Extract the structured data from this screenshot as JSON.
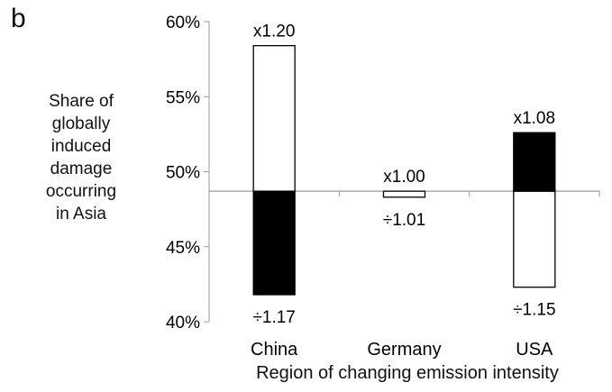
{
  "chart_data": {
    "type": "bar",
    "panel_label": "b",
    "ylabel": "Share of globally induced damage occurring in Asia",
    "ylabel_lines": [
      "Share of",
      "globally",
      "induced",
      "damage",
      "occurring",
      "in Asia"
    ],
    "xlabel": "Region of changing emission intensity",
    "ylim": [
      40,
      60
    ],
    "yticks": [
      40,
      45,
      50,
      55,
      60
    ],
    "ytick_labels": [
      "40%",
      "45%",
      "50%",
      "55%",
      "60%"
    ],
    "baseline": 48.7,
    "categories": [
      "China",
      "Germany",
      "USA"
    ],
    "series": [
      {
        "fill": "white",
        "upper": [
          58.4,
          48.7,
          48.7
        ],
        "lower": [
          48.7,
          48.3,
          42.3
        ],
        "color": "#ffffff"
      },
      {
        "fill": "black",
        "upper": [
          48.7,
          null,
          52.6
        ],
        "lower": [
          41.8,
          null,
          48.7
        ],
        "color": "#000000"
      }
    ],
    "annotations": {
      "top": [
        "x1.20",
        "x1.00",
        "x1.08"
      ],
      "bottom": [
        "÷1.17",
        "÷1.01",
        "÷1.15"
      ]
    },
    "grid": false,
    "legend": "none"
  }
}
